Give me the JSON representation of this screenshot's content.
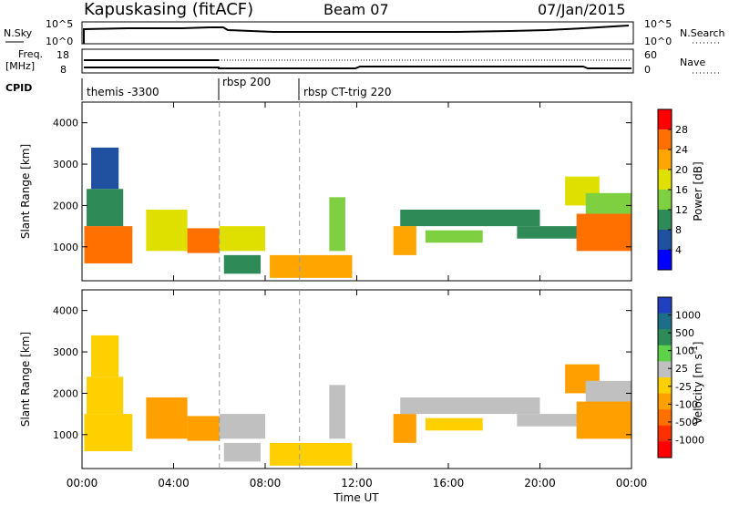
{
  "header": {
    "station": "Kapuskasing (fitACF)",
    "beam": "Beam 07",
    "date": "07/Jan/2015"
  },
  "sky_panel": {
    "label": "N.Sky",
    "right_label": "N.Search",
    "tick_top": "10^5",
    "tick_bottom": "10^0"
  },
  "freq_panel": {
    "label_line1": "Freq.",
    "label_line2": "[MHz]",
    "left_tick_top": "18",
    "left_tick_bottom": "8",
    "right_tick_top": "60",
    "right_tick_bottom": "0",
    "right_label": "Nave"
  },
  "cpid": {
    "label": "CPID",
    "segments": [
      {
        "text": "themis -3300",
        "start_hour": 0
      },
      {
        "text": "rbsp 200",
        "start_hour": 6
      },
      {
        "text": "rbsp CT-trig 220",
        "start_hour": 9.5
      }
    ]
  },
  "x_axis": {
    "label": "Time UT",
    "ticks": [
      "00:00",
      "04:00",
      "08:00",
      "12:00",
      "16:00",
      "20:00",
      "00:00"
    ]
  },
  "colors": {
    "power": [
      "#0000ff",
      "#2050a0",
      "#2e8b57",
      "#7fd040",
      "#e0e000",
      "#ffa500",
      "#ff7000",
      "#ff0000"
    ],
    "velocity": [
      "#2040c0",
      "#1e6e8a",
      "#2e8b57",
      "#5fd04a",
      "#c0c0c0",
      "#ffd000",
      "#ffa000",
      "#ff7000",
      "#ff3000",
      "#ff0000"
    ]
  },
  "chart_data": [
    {
      "type": "heatmap",
      "name": "Power",
      "xlabel": "Time UT",
      "ylabel": "Slant Range [km]",
      "xlim": [
        0,
        24
      ],
      "ylim": [
        180,
        4500
      ],
      "yticks": [
        "1000",
        "2000",
        "3000",
        "4000"
      ],
      "colorbar": {
        "label": "Power [dB]",
        "ticks": [
          "4",
          "8",
          "12",
          "16",
          "20",
          "24",
          "28"
        ],
        "range": [
          0,
          30
        ]
      },
      "regions": [
        {
          "t0": 0.1,
          "t1": 2.2,
          "r0": 600,
          "r1": 1500,
          "v": 26
        },
        {
          "t0": 0.2,
          "t1": 1.8,
          "r0": 1500,
          "r1": 2400,
          "v": 10
        },
        {
          "t0": 0.4,
          "t1": 1.6,
          "r0": 2400,
          "r1": 3400,
          "v": 6
        },
        {
          "t0": 2.8,
          "t1": 4.6,
          "r0": 900,
          "r1": 1900,
          "v": 16
        },
        {
          "t0": 4.6,
          "t1": 6.0,
          "r0": 850,
          "r1": 1450,
          "v": 24
        },
        {
          "t0": 6.0,
          "t1": 8.0,
          "r0": 900,
          "r1": 1500,
          "v": 18
        },
        {
          "t0": 6.2,
          "t1": 7.8,
          "r0": 350,
          "r1": 800,
          "v": 8
        },
        {
          "t0": 8.2,
          "t1": 11.8,
          "r0": 250,
          "r1": 800,
          "v": 20
        },
        {
          "t0": 10.8,
          "t1": 11.5,
          "r0": 900,
          "r1": 2200,
          "v": 14
        },
        {
          "t0": 13.6,
          "t1": 14.6,
          "r0": 800,
          "r1": 1500,
          "v": 20
        },
        {
          "t0": 13.9,
          "t1": 20.0,
          "r0": 1500,
          "r1": 1900,
          "v": 8
        },
        {
          "t0": 15.0,
          "t1": 17.5,
          "r0": 1100,
          "r1": 1400,
          "v": 14
        },
        {
          "t0": 19.0,
          "t1": 22.0,
          "r0": 1200,
          "r1": 1500,
          "v": 10
        },
        {
          "t0": 21.1,
          "t1": 22.6,
          "r0": 2000,
          "r1": 2700,
          "v": 16
        },
        {
          "t0": 21.6,
          "t1": 24.0,
          "r0": 900,
          "r1": 1800,
          "v": 24
        },
        {
          "t0": 22.0,
          "t1": 24.0,
          "r0": 1800,
          "r1": 2300,
          "v": 12
        }
      ]
    },
    {
      "type": "heatmap",
      "name": "Velocity",
      "xlabel": "Time UT",
      "ylabel": "Slant Range [km]",
      "xlim": [
        0,
        24
      ],
      "ylim": [
        180,
        4500
      ],
      "yticks": [
        "1000",
        "2000",
        "3000",
        "4000"
      ],
      "colorbar": {
        "label": "Velocity [m s^-1]",
        "ticks": [
          "1000",
          "500",
          "100",
          "25",
          "-25",
          "-100",
          "-500",
          "-1000"
        ],
        "range": [
          -1200,
          1200
        ]
      },
      "regions": [
        {
          "t0": 0.1,
          "t1": 2.2,
          "r0": 600,
          "r1": 1500,
          "v": -200
        },
        {
          "t0": 0.2,
          "t1": 1.8,
          "r0": 1500,
          "r1": 2400,
          "v": -50
        },
        {
          "t0": 0.4,
          "t1": 1.6,
          "r0": 2400,
          "r1": 3400,
          "v": -150
        },
        {
          "t0": 2.8,
          "t1": 4.6,
          "r0": 900,
          "r1": 1900,
          "v": -400
        },
        {
          "t0": 4.6,
          "t1": 6.0,
          "r0": 850,
          "r1": 1450,
          "v": -450
        },
        {
          "t0": 6.0,
          "t1": 8.0,
          "r0": 900,
          "r1": 1500,
          "v": 150
        },
        {
          "t0": 6.2,
          "t1": 7.8,
          "r0": 350,
          "r1": 800,
          "v": 0
        },
        {
          "t0": 8.2,
          "t1": 11.8,
          "r0": 250,
          "r1": 800,
          "v": -100
        },
        {
          "t0": 10.8,
          "t1": 11.5,
          "r0": 900,
          "r1": 2200,
          "v": 80
        },
        {
          "t0": 13.6,
          "t1": 14.6,
          "r0": 800,
          "r1": 1500,
          "v": -300
        },
        {
          "t0": 13.9,
          "t1": 20.0,
          "r0": 1500,
          "r1": 1900,
          "v": 0
        },
        {
          "t0": 15.0,
          "t1": 17.5,
          "r0": 1100,
          "r1": 1400,
          "v": -150
        },
        {
          "t0": 19.0,
          "t1": 22.0,
          "r0": 1200,
          "r1": 1500,
          "v": 0
        },
        {
          "t0": 21.1,
          "t1": 22.6,
          "r0": 2000,
          "r1": 2700,
          "v": -300
        },
        {
          "t0": 21.6,
          "t1": 24.0,
          "r0": 900,
          "r1": 1800,
          "v": -250
        },
        {
          "t0": 22.0,
          "t1": 24.0,
          "r0": 1800,
          "r1": 2300,
          "v": 0
        }
      ]
    }
  ]
}
